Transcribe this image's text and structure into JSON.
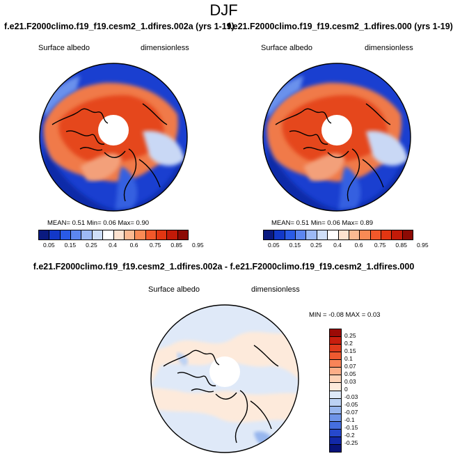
{
  "main_title": "DJF",
  "panels": [
    {
      "title": "f.e21.F2000climo.f19_f19.cesm2_1.dfires.002a (yrs 1-19)",
      "variable": "Surface albedo",
      "units": "dimensionless",
      "stats": "MEAN=   0.51  Min=   0.06  Max=   0.90"
    },
    {
      "title": "f.e21.F2000climo.f19_f19.cesm2_1.dfires.000 (yrs 1-19)",
      "variable": "Surface albedo",
      "units": "dimensionless",
      "stats": "MEAN=   0.51  Min=   0.06  Max=   0.89"
    }
  ],
  "albedo_colorbar": {
    "labels": [
      "0.05",
      "0.15",
      "0.25",
      "0.4",
      "0.6",
      "0.75",
      "0.85",
      "0.95"
    ],
    "colors": [
      "#0a1a80",
      "#1238c8",
      "#2a5be6",
      "#5c86f0",
      "#9dbaf5",
      "#cfdff8",
      "#ffffff",
      "#fde2cf",
      "#fbb991",
      "#f98a55",
      "#f2582a",
      "#e23612",
      "#c21a08",
      "#8c0a04"
    ]
  },
  "diff_panel": {
    "title": "f.e21.F2000climo.f19_f19.cesm2_1.dfires.002a - f.e21.F2000climo.f19_f19.cesm2_1.dfires.000",
    "variable": "Surface albedo",
    "units": "dimensionless",
    "minmax": "MIN =  -0.08 MAX =   0.03"
  },
  "diff_colorbar": {
    "labels": [
      "0.25",
      "0.2",
      "0.15",
      "0.1",
      "0.07",
      "0.05",
      "0.03",
      "0",
      "-0.03",
      "-0.05",
      "-0.07",
      "-0.1",
      "-0.15",
      "-0.2",
      "-0.25"
    ],
    "colors": [
      "#9c0a06",
      "#c81e0e",
      "#e03a1c",
      "#f05a30",
      "#f98458",
      "#fcae88",
      "#fdd2b6",
      "#fdeadb",
      "#dfe9f8",
      "#bcd2f4",
      "#97b6ee",
      "#6e94e8",
      "#456fe0",
      "#2648cc",
      "#1228a8",
      "#08137a"
    ]
  }
}
